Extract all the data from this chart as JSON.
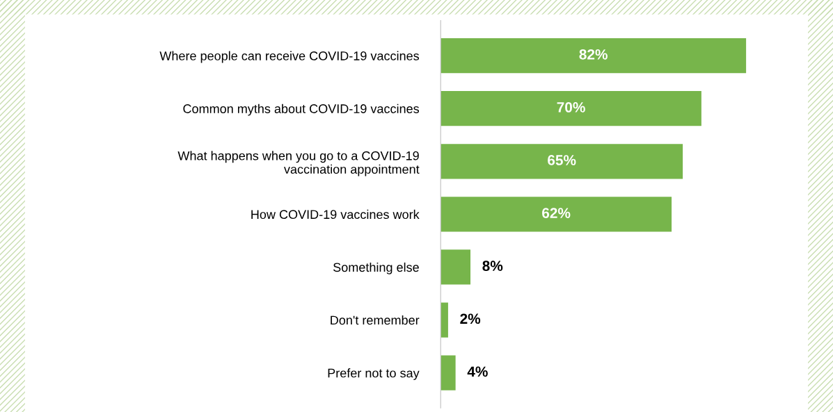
{
  "chart_data": {
    "type": "bar",
    "orientation": "horizontal",
    "categories": [
      "Where people can receive COVID-19 vaccines",
      "Common myths about COVID-19 vaccines",
      "What happens when you go to a COVID-19\nvaccination appointment",
      "How COVID-19 vaccines work",
      "Something else",
      "Don't remember",
      "Prefer not to say"
    ],
    "values": [
      82,
      70,
      65,
      62,
      8,
      2,
      4
    ],
    "value_labels": [
      "82%",
      "70%",
      "65%",
      "62%",
      "8%",
      "2%",
      "4%"
    ],
    "color": "#77b54b"
  }
}
